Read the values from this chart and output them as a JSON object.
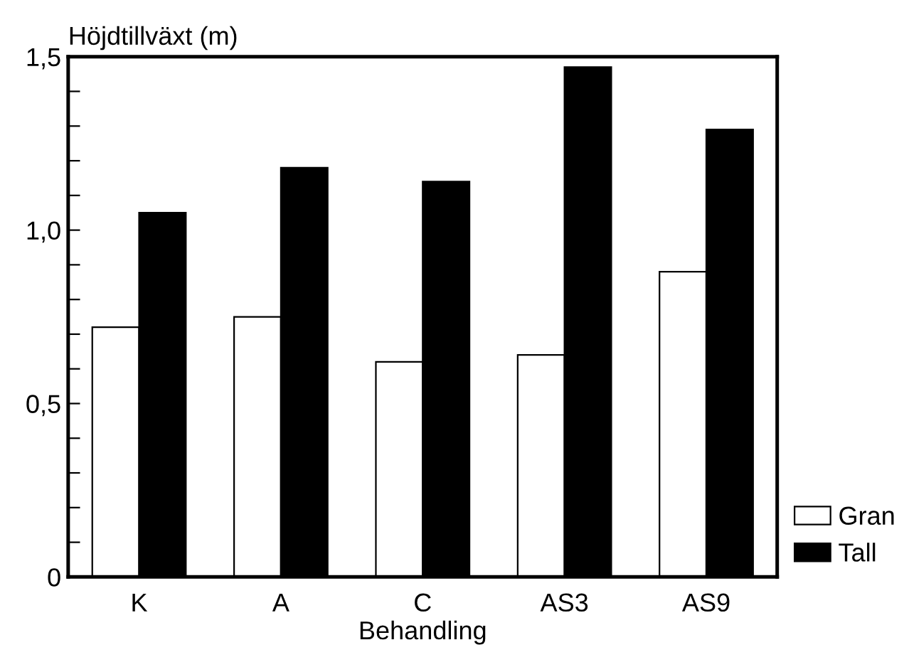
{
  "chart_data": {
    "type": "bar",
    "ylabel": "Höjdtillväxt (m)",
    "xlabel": "Behandling",
    "categories": [
      "K",
      "A",
      "C",
      "AS3",
      "AS9"
    ],
    "series": [
      {
        "name": "Gran",
        "color": "#ffffff",
        "values": [
          0.72,
          0.75,
          0.62,
          0.64,
          0.88
        ]
      },
      {
        "name": "Tall",
        "color": "#000000",
        "values": [
          1.05,
          1.18,
          1.14,
          1.47,
          1.29
        ]
      }
    ],
    "ylim": [
      0,
      1.5
    ],
    "yticks": [
      {
        "value": 0,
        "label": "0"
      },
      {
        "value": 0.1,
        "label": null
      },
      {
        "value": 0.2,
        "label": null
      },
      {
        "value": 0.3,
        "label": null
      },
      {
        "value": 0.4,
        "label": null
      },
      {
        "value": 0.5,
        "label": "0,5"
      },
      {
        "value": 0.6,
        "label": null
      },
      {
        "value": 0.7,
        "label": null
      },
      {
        "value": 0.8,
        "label": null
      },
      {
        "value": 0.9,
        "label": null
      },
      {
        "value": 1.0,
        "label": "1,0"
      },
      {
        "value": 1.1,
        "label": null
      },
      {
        "value": 1.2,
        "label": null
      },
      {
        "value": 1.3,
        "label": null
      },
      {
        "value": 1.4,
        "label": null
      },
      {
        "value": 1.5,
        "label": "1,5"
      }
    ],
    "legend": "bottom right",
    "grid": false
  }
}
